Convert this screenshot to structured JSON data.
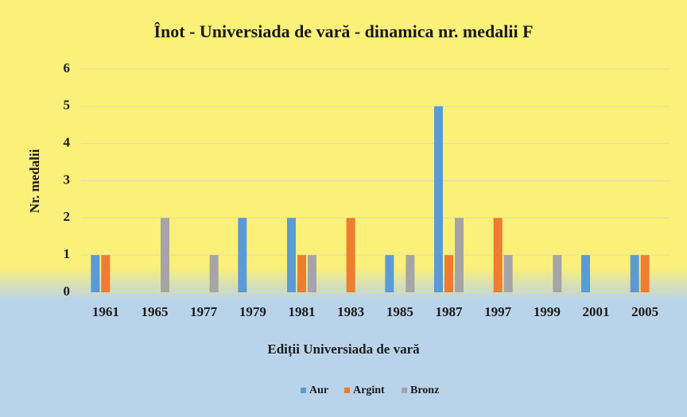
{
  "chart_data": {
    "type": "bar",
    "title": "Înot - Universiada de vară - dinamica nr. medalii F",
    "x_label": "Ediții Universiada de vară",
    "y_label": "Nr. medalii",
    "categories": [
      "1961",
      "1965",
      "1977",
      "1979",
      "1981",
      "1983",
      "1985",
      "1987",
      "1997",
      "1999",
      "2001",
      "2005"
    ],
    "series": [
      {
        "name": "Aur",
        "color": "#5b9bd5",
        "values": [
          1,
          0,
          0,
          2,
          2,
          0,
          1,
          5,
          0,
          0,
          1,
          1
        ]
      },
      {
        "name": "Argint",
        "color": "#ed7d31",
        "values": [
          1,
          0,
          0,
          0,
          1,
          2,
          0,
          1,
          2,
          0,
          0,
          1
        ]
      },
      {
        "name": "Bronz",
        "color": "#a5a5a5",
        "values": [
          0,
          2,
          1,
          0,
          1,
          0,
          1,
          2,
          1,
          1,
          0,
          0
        ]
      }
    ],
    "ylim": [
      0,
      6
    ],
    "yticks": [
      0,
      1,
      2,
      3,
      4,
      5,
      6
    ],
    "grid": true,
    "legend": "bottom"
  }
}
